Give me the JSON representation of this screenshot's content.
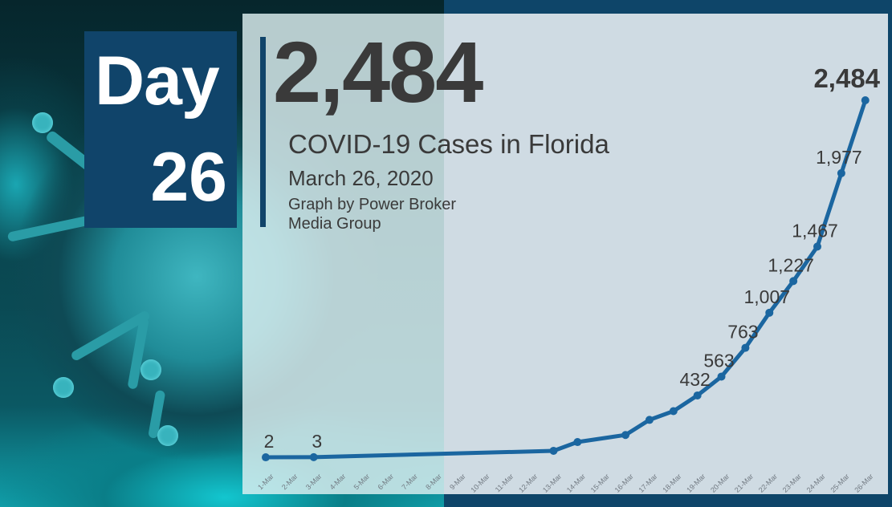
{
  "badge": {
    "word": "Day",
    "number": "26"
  },
  "headline": {
    "total_cases": "2,484",
    "title": "COVID-19 Cases in Florida",
    "date": "March 26, 2020",
    "credit": "Graph by Power Broker Media Group"
  },
  "colors": {
    "navy": "#10446a",
    "frame": "#0e4569",
    "panel": "#cfdbe3",
    "line": "#1b66a0",
    "text": "#3a3a3a",
    "teal": "#2a9ca6"
  },
  "chart_data": {
    "type": "line",
    "title": "COVID-19 Cases in Florida",
    "subtitle": "March 26, 2020",
    "xlabel": "",
    "ylabel": "",
    "grid": false,
    "legend": "none",
    "categories": [
      "1-Mar",
      "2-Mar",
      "3-Mar",
      "4-Mar",
      "5-Mar",
      "6-Mar",
      "7-Mar",
      "8-Mar",
      "9-Mar",
      "10-Mar",
      "11-Mar",
      "12-Mar",
      "13-Mar",
      "14-Mar",
      "15-Mar",
      "16-Mar",
      "17-Mar",
      "18-Mar",
      "19-Mar",
      "20-Mar",
      "21-Mar",
      "22-Mar",
      "23-Mar",
      "24-Mar",
      "25-Mar",
      "26-Mar"
    ],
    "series": [
      {
        "name": "Cases",
        "points": [
          {
            "x": "1-Mar",
            "y": 2,
            "label": "2"
          },
          {
            "x": "3-Mar",
            "y": 3,
            "label": "3"
          },
          {
            "x": "13-Mar",
            "y": 47,
            "label": ""
          },
          {
            "x": "14-Mar",
            "y": 108,
            "label": ""
          },
          {
            "x": "16-Mar",
            "y": 157,
            "label": ""
          },
          {
            "x": "17-Mar",
            "y": 262,
            "label": ""
          },
          {
            "x": "18-Mar",
            "y": 323,
            "label": ""
          },
          {
            "x": "19-Mar",
            "y": 432,
            "label": "432"
          },
          {
            "x": "20-Mar",
            "y": 563,
            "label": "563"
          },
          {
            "x": "21-Mar",
            "y": 763,
            "label": "763"
          },
          {
            "x": "22-Mar",
            "y": 1007,
            "label": "1,007"
          },
          {
            "x": "23-Mar",
            "y": 1227,
            "label": "1,227"
          },
          {
            "x": "24-Mar",
            "y": 1467,
            "label": "1,467"
          },
          {
            "x": "25-Mar",
            "y": 1977,
            "label": "1,977"
          },
          {
            "x": "26-Mar",
            "y": 2484,
            "label": "2,484"
          }
        ]
      }
    ],
    "ylim": [
      0,
      2500
    ]
  }
}
